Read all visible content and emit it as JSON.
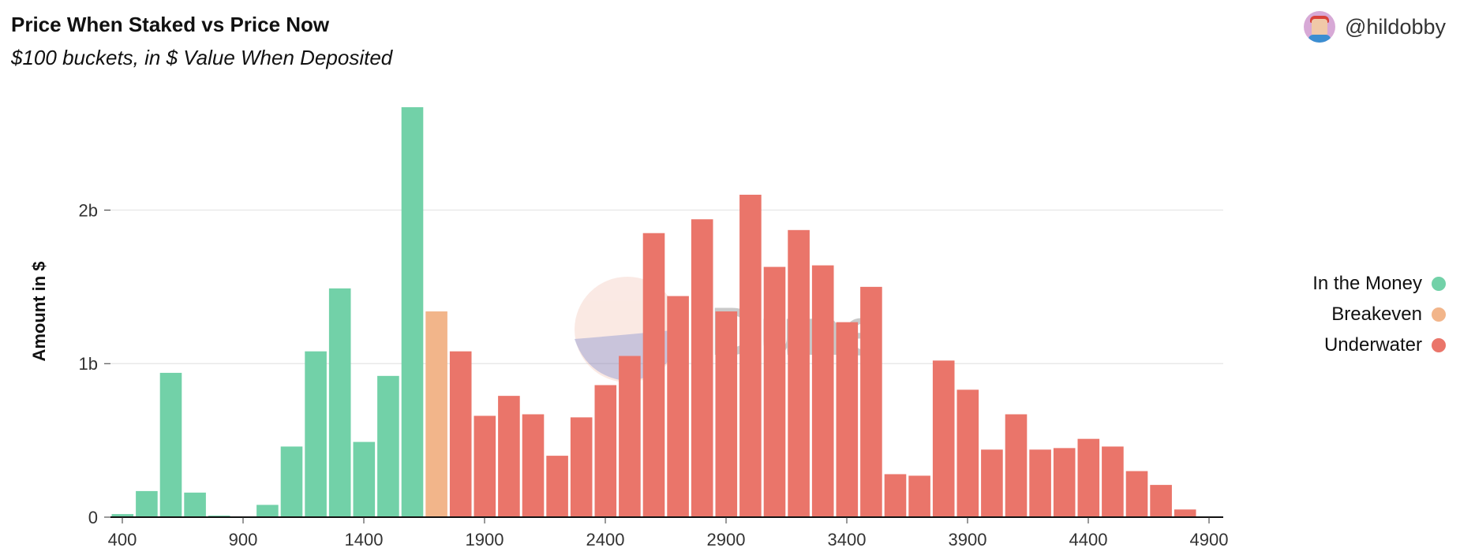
{
  "header": {
    "title": "Price When Staked vs Price Now",
    "subtitle": "$100 buckets, in $ Value When Deposited",
    "author": "@hildobby"
  },
  "watermark": {
    "text": "Dune"
  },
  "colors": {
    "in_the_money": "#72d1a8",
    "breakeven": "#f2b58a",
    "underwater": "#ea756a",
    "grid": "#e9e9e9",
    "axis": "#111111"
  },
  "chart_data": {
    "type": "bar",
    "title": "Price When Staked vs Price Now",
    "subtitle": "$100 buckets, in $ Value When Deposited",
    "xlabel": "",
    "ylabel": "Amount in $",
    "xlim": [
      400,
      4900
    ],
    "ylim": [
      0,
      2.67
    ],
    "x_ticks": [
      "400",
      "900",
      "1400",
      "1900",
      "2400",
      "2900",
      "3400",
      "3900",
      "4400",
      "4900"
    ],
    "y_ticks": [
      {
        "value": 0,
        "label": "0"
      },
      {
        "value": 1,
        "label": "1b"
      },
      {
        "value": 2,
        "label": "2b"
      }
    ],
    "unit": "billion $",
    "grid": true,
    "legend_position": "right",
    "legend": [
      "In the Money",
      "Breakeven",
      "Underwater"
    ],
    "series": [
      {
        "name": "In the Money",
        "color": "#72d1a8",
        "points": [
          {
            "x": 400,
            "y": 0.02
          },
          {
            "x": 500,
            "y": 0.17
          },
          {
            "x": 600,
            "y": 0.94
          },
          {
            "x": 700,
            "y": 0.16
          },
          {
            "x": 800,
            "y": 0.01
          },
          {
            "x": 900,
            "y": 0.0
          },
          {
            "x": 1000,
            "y": 0.08
          },
          {
            "x": 1100,
            "y": 0.46
          },
          {
            "x": 1200,
            "y": 1.08
          },
          {
            "x": 1300,
            "y": 1.49
          },
          {
            "x": 1400,
            "y": 0.49
          },
          {
            "x": 1500,
            "y": 0.92
          },
          {
            "x": 1600,
            "y": 2.67
          }
        ]
      },
      {
        "name": "Breakeven",
        "color": "#f2b58a",
        "points": [
          {
            "x": 1700,
            "y": 1.34
          }
        ]
      },
      {
        "name": "Underwater",
        "color": "#ea756a",
        "points": [
          {
            "x": 1800,
            "y": 1.08
          },
          {
            "x": 1900,
            "y": 0.66
          },
          {
            "x": 2000,
            "y": 0.79
          },
          {
            "x": 2100,
            "y": 0.67
          },
          {
            "x": 2200,
            "y": 0.4
          },
          {
            "x": 2300,
            "y": 0.65
          },
          {
            "x": 2400,
            "y": 0.86
          },
          {
            "x": 2500,
            "y": 1.05
          },
          {
            "x": 2600,
            "y": 1.85
          },
          {
            "x": 2700,
            "y": 1.44
          },
          {
            "x": 2800,
            "y": 1.94
          },
          {
            "x": 2900,
            "y": 1.34
          },
          {
            "x": 3000,
            "y": 2.1
          },
          {
            "x": 3100,
            "y": 1.63
          },
          {
            "x": 3200,
            "y": 1.87
          },
          {
            "x": 3300,
            "y": 1.64
          },
          {
            "x": 3400,
            "y": 1.27
          },
          {
            "x": 3500,
            "y": 1.5
          },
          {
            "x": 3600,
            "y": 0.28
          },
          {
            "x": 3700,
            "y": 0.27
          },
          {
            "x": 3800,
            "y": 1.02
          },
          {
            "x": 3900,
            "y": 0.83
          },
          {
            "x": 4000,
            "y": 0.44
          },
          {
            "x": 4100,
            "y": 0.67
          },
          {
            "x": 4200,
            "y": 0.44
          },
          {
            "x": 4300,
            "y": 0.45
          },
          {
            "x": 4400,
            "y": 0.51
          },
          {
            "x": 4500,
            "y": 0.46
          },
          {
            "x": 4600,
            "y": 0.3
          },
          {
            "x": 4700,
            "y": 0.21
          },
          {
            "x": 4800,
            "y": 0.05
          }
        ]
      }
    ]
  }
}
